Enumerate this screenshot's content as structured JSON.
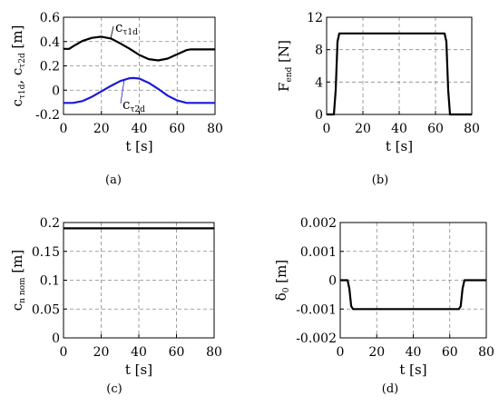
{
  "chart_data": [
    {
      "type": "line",
      "caption": "(a)",
      "xlabel": "t [s]",
      "ylabel_parts": [
        {
          "t": "c",
          "s": false
        },
        {
          "t": "τ1d",
          "s": true
        },
        {
          "t": ", c",
          "s": false
        },
        {
          "t": "τ2d",
          "s": true
        },
        {
          "t": " [m]",
          "s": false
        }
      ],
      "xlim": [
        0,
        80
      ],
      "ylim": [
        -0.2,
        0.6
      ],
      "xticks": [
        0,
        20,
        40,
        60,
        80
      ],
      "yticks": [
        -0.2,
        0,
        0.2,
        0.4,
        0.6
      ],
      "ytick_labels": [
        "-0.2",
        "0",
        "0.2",
        "0.4",
        "0.6"
      ],
      "grid": true,
      "series": [
        {
          "label_parts": [
            {
              "t": "c",
              "s": false
            },
            {
              "t": "τ1d",
              "s": true
            }
          ],
          "color": "#000000",
          "x": [
            0,
            3,
            5,
            10,
            15,
            20,
            25,
            30,
            35,
            40,
            45,
            50,
            55,
            60,
            65,
            67,
            70,
            80
          ],
          "y": [
            0.34,
            0.34,
            0.36,
            0.405,
            0.43,
            0.44,
            0.425,
            0.385,
            0.34,
            0.29,
            0.255,
            0.245,
            0.26,
            0.295,
            0.33,
            0.335,
            0.335,
            0.335
          ]
        },
        {
          "label_parts": [
            {
              "t": "c",
              "s": false
            },
            {
              "t": "τ2d",
              "s": true
            }
          ],
          "color": "#1a1ad6",
          "x": [
            0,
            5,
            10,
            15,
            20,
            25,
            30,
            35,
            37,
            40,
            45,
            50,
            55,
            60,
            65,
            67,
            70,
            80
          ],
          "y": [
            -0.105,
            -0.105,
            -0.09,
            -0.055,
            -0.01,
            0.035,
            0.075,
            0.098,
            0.1,
            0.095,
            0.06,
            0.01,
            -0.045,
            -0.085,
            -0.105,
            -0.105,
            -0.105,
            -0.105
          ]
        }
      ]
    },
    {
      "type": "line",
      "caption": "(b)",
      "xlabel": "t [s]",
      "ylabel_parts": [
        {
          "t": "F",
          "s": false
        },
        {
          "t": "end",
          "s": true
        },
        {
          "t": " [N]",
          "s": false
        }
      ],
      "xlim": [
        0,
        80
      ],
      "ylim": [
        0,
        12
      ],
      "xticks": [
        0,
        20,
        40,
        60,
        80
      ],
      "yticks": [
        0,
        4,
        8,
        12
      ],
      "ytick_labels": [
        "0",
        "4",
        "8",
        "12"
      ],
      "grid": true,
      "series": [
        {
          "color": "#000000",
          "x": [
            0,
            4,
            5,
            6,
            7,
            65,
            66,
            67,
            68,
            80
          ],
          "y": [
            0,
            0,
            3,
            9,
            10,
            10,
            9,
            3,
            0,
            0
          ]
        }
      ]
    },
    {
      "type": "line",
      "caption": "(c)",
      "xlabel": "t [s]",
      "ylabel_parts": [
        {
          "t": "c",
          "s": false
        },
        {
          "t": "n nom",
          "s": true
        },
        {
          "t": " [m]",
          "s": false
        }
      ],
      "xlim": [
        0,
        80
      ],
      "ylim": [
        0,
        0.2
      ],
      "xticks": [
        0,
        20,
        40,
        60,
        80
      ],
      "yticks": [
        0,
        0.05,
        0.1,
        0.15,
        0.2
      ],
      "ytick_labels": [
        "0",
        "0.05",
        "0.1",
        "0.15",
        "0.2"
      ],
      "grid": true,
      "series": [
        {
          "color": "#000000",
          "x": [
            0,
            80
          ],
          "y": [
            0.19,
            0.19
          ]
        }
      ]
    },
    {
      "type": "line",
      "caption": "(d)",
      "xlabel": "t [s]",
      "ylabel_parts": [
        {
          "t": "δ",
          "s": false
        },
        {
          "t": "0",
          "s": true
        },
        {
          "t": " [m]",
          "s": false
        }
      ],
      "xlim": [
        0,
        80
      ],
      "ylim": [
        -0.002,
        0.002
      ],
      "xticks": [
        0,
        20,
        40,
        60,
        80
      ],
      "yticks": [
        -0.002,
        -0.001,
        0,
        0.001,
        0.002
      ],
      "ytick_labels": [
        "-0.002",
        "-0.001",
        "0",
        "0.001",
        "0.002"
      ],
      "grid": true,
      "series": [
        {
          "color": "#000000",
          "x": [
            0,
            4,
            5,
            6,
            7,
            65,
            66,
            67,
            68,
            80
          ],
          "y": [
            0,
            0,
            -0.0003,
            -0.0009,
            -0.001,
            -0.001,
            -0.0009,
            -0.0003,
            0,
            0
          ]
        }
      ]
    }
  ]
}
